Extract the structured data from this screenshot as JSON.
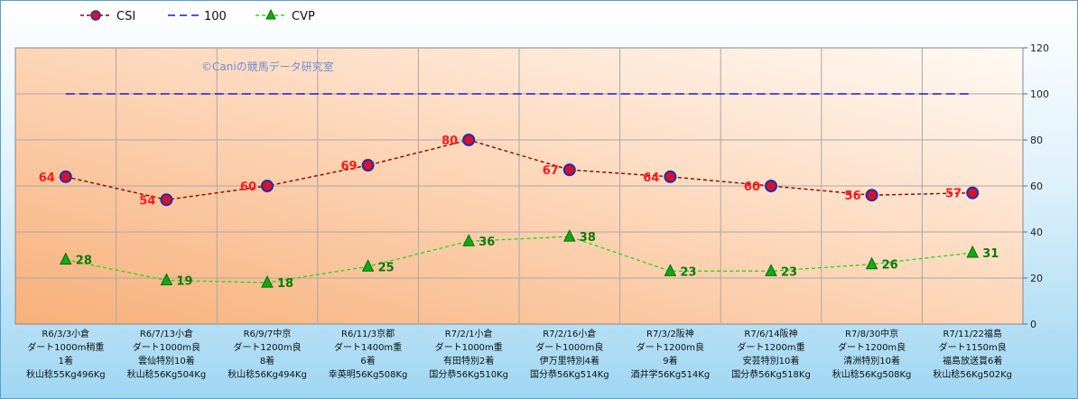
{
  "chart_data": {
    "type": "line",
    "watermark": "©Caniの競馬データ研究室",
    "legend_position": "top-left",
    "ylim": [
      0,
      120
    ],
    "yticks": [
      0,
      20,
      40,
      60,
      80,
      100,
      120
    ],
    "grid": true,
    "categories": [
      [
        "R6/3/3小倉",
        "ダート1000m稍重",
        "1着",
        "秋山稔55Kg496Kg"
      ],
      [
        "R6/7/13小倉",
        "ダート1000m良",
        "雲仙特別10着",
        "秋山稔56Kg504Kg"
      ],
      [
        "R6/9/7中京",
        "ダート1200m良",
        "8着",
        "秋山稔56Kg494Kg"
      ],
      [
        "R6/11/3京都",
        "ダート1400m重",
        "6着",
        "幸英明56Kg508Kg"
      ],
      [
        "R7/2/1小倉",
        "ダート1000m重",
        "有田特別2着",
        "国分恭56Kg510Kg"
      ],
      [
        "R7/2/16小倉",
        "ダート1000m良",
        "伊万里特別4着",
        "国分恭56Kg514Kg"
      ],
      [
        "R7/3/2阪神",
        "ダート1200m良",
        "9着",
        "酒井学56Kg514Kg"
      ],
      [
        "R7/6/14阪神",
        "ダート1200m重",
        "安芸特別10着",
        "国分恭56Kg518Kg"
      ],
      [
        "R7/8/30中京",
        "ダート1200m良",
        "清洲特別10着",
        "秋山稔56Kg508Kg"
      ],
      [
        "R7/11/22福島",
        "ダート1150m良",
        "福島放送賞6着",
        "秋山稔56Kg502Kg"
      ]
    ],
    "series": [
      {
        "name": "CSI",
        "values": [
          64,
          54,
          60,
          69,
          80,
          67,
          64,
          60,
          56,
          57
        ],
        "color": "#8b0000",
        "marker": "circle",
        "label_color": "#ff1a1a"
      },
      {
        "name": "100",
        "values": [
          100,
          100,
          100,
          100,
          100,
          100,
          100,
          100,
          100,
          100
        ],
        "color": "#1a1acc",
        "marker": "none"
      },
      {
        "name": "CVP",
        "values": [
          28,
          19,
          18,
          25,
          36,
          38,
          23,
          23,
          26,
          31
        ],
        "color": "#22dd22",
        "marker": "triangle",
        "label_color": "#0a7a0a"
      }
    ]
  }
}
